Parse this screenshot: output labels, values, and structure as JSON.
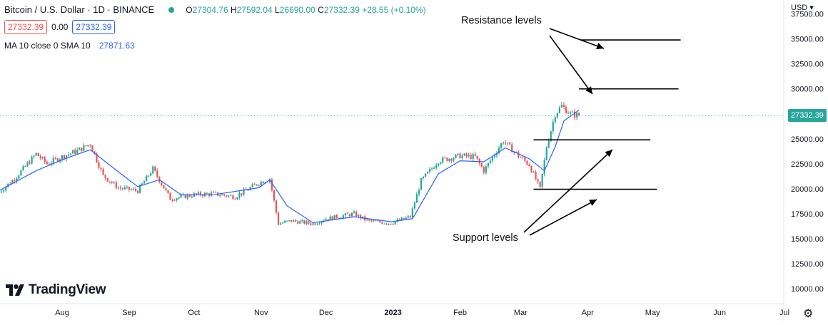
{
  "legend": {
    "symbol": "Bitcoin / U.S. Dollar · 1D · BINANCE",
    "open": "27304.76",
    "high": "27592.04",
    "low": "26690.00",
    "close": "27332.39",
    "change": "+28.55 (+0.10%)",
    "bid": "27332.39",
    "spread": "0.00",
    "ask": "27332.39",
    "ma_label": "MA 10 close 0 SMA 10",
    "ma_value": "27871.63"
  },
  "brand": {
    "name": "TradingView",
    "logo_icon": "tradingview-logo-icon"
  },
  "price_axis": {
    "currency": "USD",
    "current_price_label": "27332.39"
  },
  "settings_icon": "gear-icon",
  "annotations": {
    "resistance": "Resistance levels",
    "support": "Support levels"
  },
  "colors": {
    "up": "#26a69a",
    "down": "#ef5350",
    "ma": "#2962ff",
    "current": "#26a69a"
  },
  "chart_data": {
    "type": "candlestick",
    "title": "Bitcoin / U.S. Dollar · 1D · BINANCE",
    "ylim": [
      8500,
      38900
    ],
    "y_ticks": [
      "10000.00",
      "12500.00",
      "15000.00",
      "17500.00",
      "20000.00",
      "22500.00",
      "25000.00",
      "27500.00",
      "30000.00",
      "32500.00",
      "35000.00",
      "37500.00"
    ],
    "x_ticks": [
      "Aug",
      "Sep",
      "Oct",
      "Nov",
      "Dec",
      "2023",
      "Feb",
      "Mar",
      "Apr",
      "May",
      "Jun",
      "Jul"
    ],
    "current_price": 27332.39,
    "price_path": [
      [
        "2022-07-01",
        19300
      ],
      [
        "2022-07-10",
        21000
      ],
      [
        "2022-07-20",
        23500
      ],
      [
        "2022-07-25",
        22500
      ],
      [
        "2022-08-01",
        23200
      ],
      [
        "2022-08-08",
        23800
      ],
      [
        "2022-08-14",
        24500
      ],
      [
        "2022-08-20",
        21300
      ],
      [
        "2022-08-27",
        20100
      ],
      [
        "2022-09-05",
        19800
      ],
      [
        "2022-09-12",
        22000
      ],
      [
        "2022-09-20",
        19000
      ],
      [
        "2022-10-01",
        19400
      ],
      [
        "2022-10-10",
        19500
      ],
      [
        "2022-10-20",
        19200
      ],
      [
        "2022-10-31",
        20600
      ],
      [
        "2022-11-05",
        21000
      ],
      [
        "2022-11-09",
        16500
      ],
      [
        "2022-11-15",
        16800
      ],
      [
        "2022-11-25",
        16500
      ],
      [
        "2022-12-01",
        17000
      ],
      [
        "2022-12-14",
        17500
      ],
      [
        "2022-12-20",
        16800
      ],
      [
        "2022-12-31",
        16550
      ],
      [
        "2023-01-09",
        17200
      ],
      [
        "2023-01-14",
        20800
      ],
      [
        "2023-01-22",
        22800
      ],
      [
        "2023-02-01",
        23300
      ],
      [
        "2023-02-08",
        23200
      ],
      [
        "2023-02-12",
        21800
      ],
      [
        "2023-02-21",
        24800
      ],
      [
        "2023-02-28",
        23300
      ],
      [
        "2023-03-05",
        22400
      ],
      [
        "2023-03-10",
        20000
      ],
      [
        "2023-03-13",
        24200
      ],
      [
        "2023-03-17",
        27500
      ],
      [
        "2023-03-20",
        28300
      ],
      [
        "2023-03-24",
        27500
      ],
      [
        "2023-03-28",
        27332
      ]
    ],
    "ma": {
      "name": "MA 10 close 0 SMA 10",
      "path": [
        [
          "2022-07-01",
          19600
        ],
        [
          "2022-07-20",
          21800
        ],
        [
          "2022-08-01",
          22900
        ],
        [
          "2022-08-14",
          23900
        ],
        [
          "2022-08-24",
          22200
        ],
        [
          "2022-09-05",
          20200
        ],
        [
          "2022-09-15",
          20900
        ],
        [
          "2022-09-25",
          19400
        ],
        [
          "2022-10-10",
          19400
        ],
        [
          "2022-10-31",
          20100
        ],
        [
          "2022-11-05",
          20900
        ],
        [
          "2022-11-13",
          18300
        ],
        [
          "2022-11-25",
          16600
        ],
        [
          "2022-12-14",
          17200
        ],
        [
          "2022-12-31",
          16700
        ],
        [
          "2023-01-10",
          17000
        ],
        [
          "2023-01-22",
          21500
        ],
        [
          "2023-02-01",
          22800
        ],
        [
          "2023-02-12",
          22700
        ],
        [
          "2023-02-22",
          24100
        ],
        [
          "2023-03-05",
          23000
        ],
        [
          "2023-03-12",
          21800
        ],
        [
          "2023-03-17",
          24200
        ],
        [
          "2023-03-21",
          26800
        ],
        [
          "2023-03-28",
          27871.63
        ]
      ]
    },
    "levels": [
      {
        "kind": "resistance",
        "value": 34900,
        "from": "2023-03-29",
        "to": "2023-05-14"
      },
      {
        "kind": "resistance",
        "value": 30000,
        "from": "2023-03-28",
        "to": "2023-05-13"
      },
      {
        "kind": "support",
        "value": 24900,
        "from": "2023-03-07",
        "to": "2023-04-30"
      },
      {
        "kind": "support",
        "value": 19950,
        "from": "2023-03-07",
        "to": "2023-05-03"
      }
    ]
  }
}
